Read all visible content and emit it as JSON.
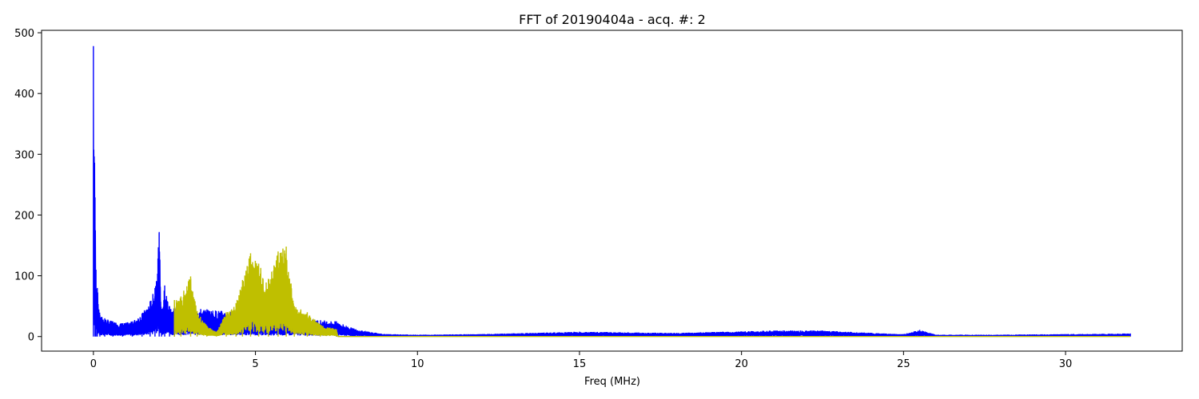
{
  "chart_data": {
    "type": "line",
    "title": "FFT of 20190404a - acq. #: 2",
    "xlabel": "Freq (MHz)",
    "ylabel": "",
    "xlim": [
      -1.6,
      33.6
    ],
    "ylim": [
      -24,
      504
    ],
    "xticks": [
      0,
      5,
      10,
      15,
      20,
      25,
      30
    ],
    "yticks": [
      0,
      100,
      200,
      300,
      400,
      500
    ],
    "grid": false,
    "legend": "none",
    "colors": {
      "spectrum": "#0000ff",
      "band": "#bfbf00",
      "axes": "#000000"
    },
    "series": [
      {
        "color": "#0000ff",
        "description_points": [
          [
            0.0,
            478
          ],
          [
            0.05,
            229
          ],
          [
            0.08,
            110
          ],
          [
            0.12,
            80
          ],
          [
            0.2,
            35
          ],
          [
            0.35,
            30
          ],
          [
            0.6,
            25
          ],
          [
            0.9,
            22
          ],
          [
            1.2,
            25
          ],
          [
            1.5,
            38
          ],
          [
            1.75,
            58
          ],
          [
            1.9,
            80
          ],
          [
            2.03,
            172
          ],
          [
            2.1,
            40
          ],
          [
            2.2,
            84
          ],
          [
            2.35,
            50
          ],
          [
            2.5,
            50
          ],
          [
            7.5,
            25
          ],
          [
            8.0,
            14
          ],
          [
            8.5,
            8
          ],
          [
            9.0,
            4
          ],
          [
            10,
            3
          ],
          [
            12,
            4
          ],
          [
            15,
            8
          ],
          [
            18,
            6
          ],
          [
            21,
            10
          ],
          [
            22.5,
            10
          ],
          [
            24,
            6
          ],
          [
            25,
            4
          ],
          [
            25.5,
            11
          ],
          [
            26,
            3
          ],
          [
            28,
            3
          ],
          [
            30,
            4
          ],
          [
            32,
            5
          ]
        ]
      },
      {
        "color": "#bfbf00",
        "description_points": [
          [
            2.5,
            60
          ],
          [
            2.7,
            66
          ],
          [
            3.0,
            99
          ],
          [
            3.2,
            42
          ],
          [
            3.5,
            18
          ],
          [
            3.8,
            8
          ],
          [
            4.1,
            40
          ],
          [
            4.4,
            55
          ],
          [
            4.6,
            93
          ],
          [
            4.85,
            137
          ],
          [
            5.1,
            120
          ],
          [
            5.4,
            95
          ],
          [
            5.7,
            140
          ],
          [
            5.95,
            148
          ],
          [
            6.2,
            50
          ],
          [
            6.6,
            40
          ],
          [
            7.0,
            20
          ],
          [
            7.5,
            12
          ],
          [
            7.55,
            0
          ],
          [
            32,
            0
          ]
        ]
      }
    ]
  }
}
